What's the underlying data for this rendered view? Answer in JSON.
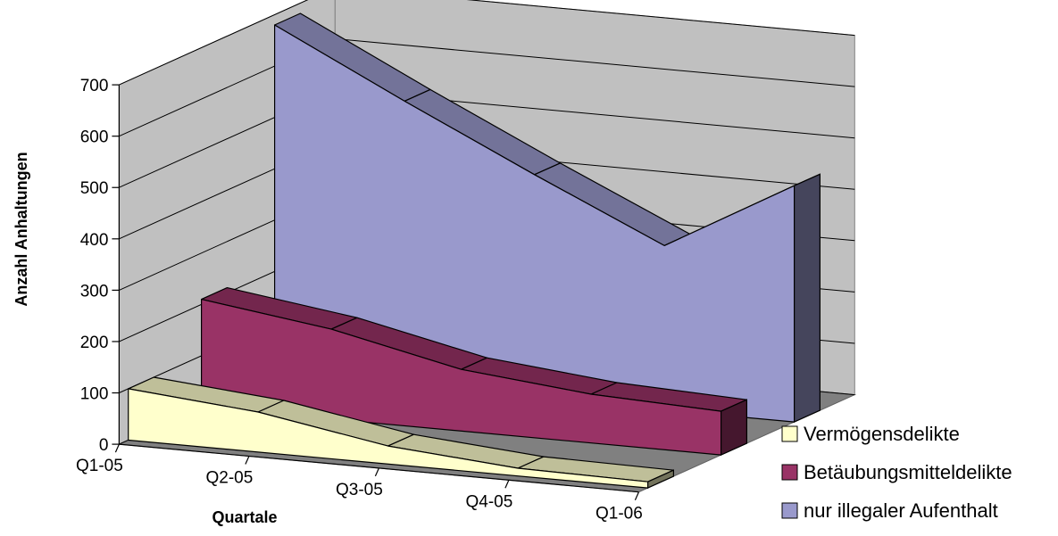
{
  "chart_data": {
    "type": "area",
    "variant": "3d-area",
    "title": "",
    "xlabel": "Quartale",
    "ylabel": "Anzahl Anhaltungen",
    "categories": [
      "Q1-05",
      "Q2-05",
      "Q3-05",
      "Q4-05",
      "Q1-06"
    ],
    "ylim": [
      0,
      700
    ],
    "yticks": [
      0,
      100,
      200,
      300,
      400,
      500,
      600,
      700
    ],
    "grid": true,
    "legend": "right",
    "series": [
      {
        "name": "Vermögensdelikte",
        "values": [
          100,
          78,
          35,
          15,
          12
        ],
        "color": "#ffffcc"
      },
      {
        "name": "Betäubungsmitteldelikte",
        "values": [
          210,
          175,
          120,
          95,
          85
        ],
        "color": "#993366"
      },
      {
        "name": "nur illegaler Aufenthalt",
        "values": [
          680,
          555,
          435,
          320,
          460
        ],
        "color": "#9999cc"
      }
    ]
  }
}
